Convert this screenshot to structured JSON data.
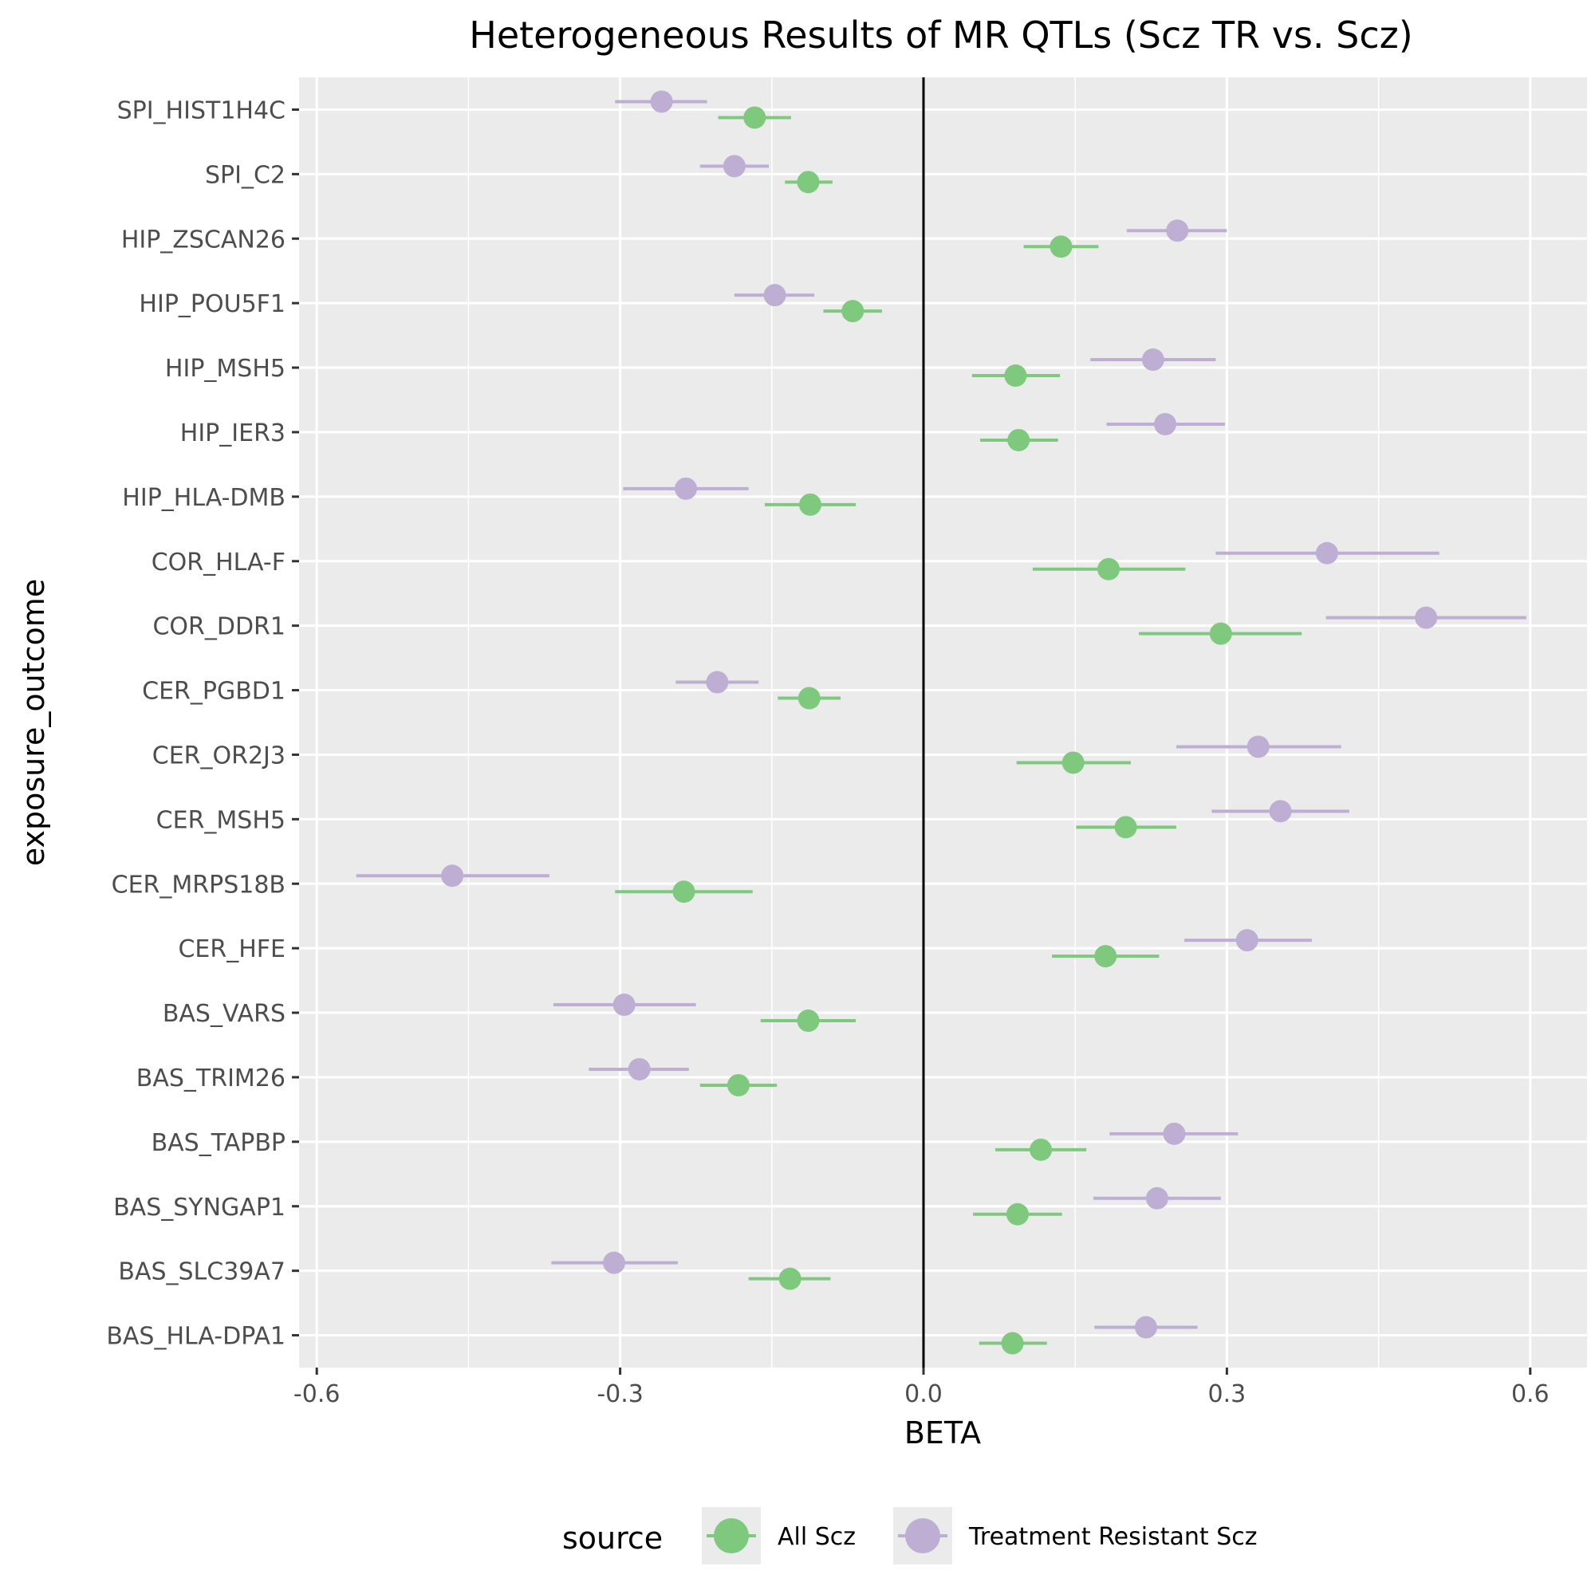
{
  "chart_data": {
    "type": "scatter",
    "subtype": "forest-plot-point-range",
    "title": "Heterogeneous Results of MR QTLs (Scz TR vs. Scz)",
    "xlabel": "BETA",
    "ylabel": "exposure_outcome",
    "xlim": [
      -0.62,
      0.65
    ],
    "x_ticks": [
      -0.6,
      -0.3,
      0.0,
      0.3,
      0.6
    ],
    "x_tick_labels": [
      "-0.6",
      "-0.3",
      "0.0",
      "0.3",
      "0.6"
    ],
    "reference_line_x": 0,
    "grid": true,
    "legend": {
      "title": "source",
      "position": "bottom"
    },
    "categories": [
      "SPI_HIST1H4C",
      "SPI_C2",
      "HIP_ZSCAN26",
      "HIP_POU5F1",
      "HIP_MSH5",
      "HIP_IER3",
      "HIP_HLA-DMB",
      "COR_HLA-F",
      "COR_DDR1",
      "CER_PGBD1",
      "CER_OR2J3",
      "CER_MSH5",
      "CER_MRPS18B",
      "CER_HFE",
      "BAS_VARS",
      "BAS_TRIM26",
      "BAS_TAPBP",
      "BAS_SYNGAP1",
      "BAS_SLC39A7",
      "BAS_HLA-DPA1"
    ],
    "series": [
      {
        "name": "All Scz",
        "color": "#7fc97f",
        "values": [
          -0.167,
          -0.114,
          0.136,
          -0.07,
          0.091,
          0.094,
          -0.112,
          0.183,
          0.294,
          -0.113,
          0.148,
          0.2,
          -0.237,
          0.18,
          -0.114,
          -0.183,
          0.116,
          0.093,
          -0.132,
          0.088
        ],
        "lower": [
          -0.203,
          -0.137,
          0.099,
          -0.099,
          0.048,
          0.056,
          -0.157,
          0.108,
          0.213,
          -0.144,
          0.092,
          0.151,
          -0.305,
          0.127,
          -0.161,
          -0.221,
          0.071,
          0.049,
          -0.173,
          0.055
        ],
        "upper": [
          -0.131,
          -0.09,
          0.173,
          -0.041,
          0.135,
          0.133,
          -0.067,
          0.259,
          0.374,
          -0.082,
          0.205,
          0.25,
          -0.169,
          0.233,
          -0.067,
          -0.145,
          0.161,
          0.137,
          -0.092,
          0.122
        ]
      },
      {
        "name": "Treatment Resistant Scz",
        "color": "#beaed4",
        "values": [
          -0.259,
          -0.187,
          0.251,
          -0.147,
          0.227,
          0.239,
          -0.235,
          0.399,
          0.497,
          -0.204,
          0.331,
          0.353,
          -0.466,
          0.32,
          -0.296,
          -0.281,
          0.248,
          0.231,
          -0.306,
          0.22
        ],
        "lower": [
          -0.305,
          -0.221,
          0.201,
          -0.187,
          0.165,
          0.181,
          -0.297,
          0.289,
          0.398,
          -0.245,
          0.25,
          0.285,
          -0.561,
          0.258,
          -0.366,
          -0.331,
          0.184,
          0.168,
          -0.368,
          0.169
        ],
        "upper": [
          -0.214,
          -0.153,
          0.3,
          -0.108,
          0.289,
          0.298,
          -0.173,
          0.51,
          0.596,
          -0.163,
          0.413,
          0.421,
          -0.37,
          0.384,
          -0.225,
          -0.232,
          0.311,
          0.294,
          -0.243,
          0.271
        ]
      }
    ]
  }
}
